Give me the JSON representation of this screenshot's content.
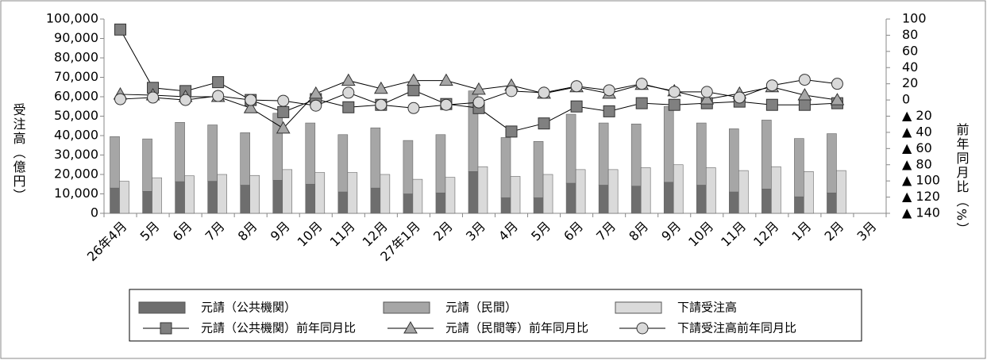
{
  "chart_data": {
    "type": "bar_line",
    "y_label": "受注高（億円）",
    "y2_label": "前年同月比（%）",
    "categories": [
      "26年4月",
      "5月",
      "6月",
      "7月",
      "8月",
      "9月",
      "10月",
      "11月",
      "12月",
      "27年1月",
      "2月",
      "3月",
      "4月",
      "5月",
      "6月",
      "7月",
      "8月",
      "9月",
      "10月",
      "11月",
      "12月",
      "1月",
      "2月",
      "3月"
    ],
    "ylim": [
      0,
      100000
    ],
    "yticks": [
      0,
      {
        "value": 10000,
        "label": "10,000"
      },
      {
        "value": 20000,
        "label": "20,000"
      },
      {
        "value": 30000,
        "label": "30,000"
      },
      {
        "value": 40000,
        "label": "40,000"
      },
      {
        "value": 50000,
        "label": "50,000"
      },
      {
        "value": 60000,
        "label": "60,000"
      },
      {
        "value": 70000,
        "label": "70,000"
      },
      {
        "value": 80000,
        "label": "80,000"
      },
      {
        "value": 90000,
        "label": "90,000"
      },
      {
        "value": 100000,
        "label": "100,000"
      }
    ],
    "y2lim": [
      -140,
      100
    ],
    "y2ticks": [
      100,
      80,
      60,
      40,
      20,
      0,
      {
        "value": -20,
        "label": "▲ 20"
      },
      {
        "value": -40,
        "label": "▲ 40"
      },
      {
        "value": -60,
        "label": "▲ 60"
      },
      {
        "value": -80,
        "label": "▲ 80"
      },
      {
        "value": -100,
        "label": "▲ 100"
      },
      {
        "value": -120,
        "label": "▲ 120"
      },
      {
        "value": -140,
        "label": "▲ 140"
      }
    ],
    "grid": false,
    "series": [
      {
        "name": "元請（公共機関）",
        "kind": "bar",
        "stack": "a",
        "color": "#6e6e6e",
        "values": [
          13000,
          11300,
          16300,
          16500,
          14500,
          17000,
          15000,
          11000,
          13000,
          10000,
          10500,
          21500,
          8000,
          8000,
          15500,
          14500,
          14000,
          16000,
          14500,
          11000,
          12500,
          8500,
          10500,
          null
        ]
      },
      {
        "name": "元請（民間）",
        "kind": "bar",
        "stack": "a",
        "color": "#a6a6a6",
        "values": [
          26500,
          27000,
          30500,
          29000,
          27000,
          34500,
          31500,
          29500,
          31000,
          27500,
          30000,
          41500,
          31000,
          29000,
          35500,
          32000,
          32000,
          39000,
          32000,
          32500,
          35500,
          30000,
          30500,
          null
        ]
      },
      {
        "name": "下請受注高",
        "kind": "bar",
        "stack": "b",
        "color": "#dadada",
        "values": [
          16500,
          18300,
          19300,
          20000,
          19500,
          22500,
          21000,
          21000,
          20000,
          17500,
          18500,
          24000,
          19000,
          20000,
          22500,
          22500,
          23500,
          25000,
          23500,
          22000,
          24000,
          21500,
          22000,
          null
        ]
      },
      {
        "name": "元請（公共機関）前年同月比",
        "kind": "line",
        "axis": "y2",
        "marker": "square",
        "color": "#808080",
        "values": [
          87,
          15,
          11,
          22,
          0,
          -15,
          1,
          -9,
          -6,
          12,
          -5,
          -10,
          -39,
          -29,
          -8,
          -14,
          -4,
          -6,
          -4,
          -2,
          -6,
          -6,
          -4,
          null
        ]
      },
      {
        "name": "元請（民間等）前年同月比",
        "kind": "line",
        "axis": "y2",
        "marker": "triangle",
        "color": "#a6a6a6",
        "values": [
          7,
          6,
          4,
          4,
          -10,
          -35,
          8,
          24,
          14,
          24,
          24,
          13,
          18,
          8,
          16,
          8,
          19,
          11,
          1,
          8,
          16,
          6,
          0,
          null
        ]
      },
      {
        "name": "下請受注高前年同月比",
        "kind": "line",
        "axis": "y2",
        "marker": "circle",
        "color": "#d9d9d9",
        "values": [
          1,
          3,
          0,
          5,
          0,
          -1,
          -7,
          9,
          -6,
          -10,
          -6,
          -3,
          11,
          9,
          17,
          12,
          20,
          10,
          10,
          3,
          18,
          25,
          20,
          null
        ]
      }
    ]
  }
}
